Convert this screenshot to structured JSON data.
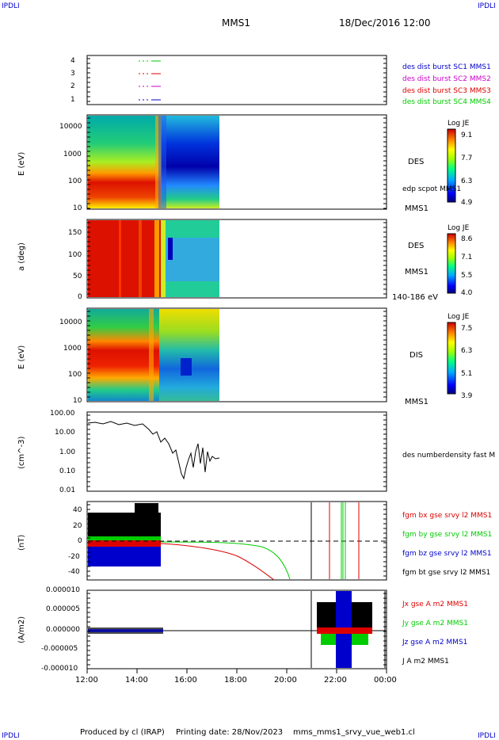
{
  "header": {
    "corner_tl": "IPDLI",
    "corner_tr": "IPDLI",
    "corner_bl": "IPDLI",
    "corner_br": "IPDLI",
    "spacecraft": "MMS1",
    "date": "18/Dec/2016 12:00"
  },
  "footer": {
    "produced": "Produced by cl (IRAP)",
    "printing": "Printing date: 28/Nov/2023",
    "file": "mms_mms1_srvy_vue_web1.cl"
  },
  "colors": {
    "mms1": "#0000cc",
    "mms2": "#cc00cc",
    "mms3": "#dd0000",
    "mms4": "#00cc00",
    "black": "#000000"
  },
  "chart_data": [
    {
      "type": "line",
      "panel": "availability",
      "ytick_labels": [
        "4",
        "3",
        "2",
        "1"
      ],
      "legend": [
        {
          "name": "des dist burst SC1 MMS1",
          "color": "#0000cc"
        },
        {
          "name": "des dist burst SC2 MMS2",
          "color": "#cc00cc"
        },
        {
          "name": "des dist burst SC3 MMS3",
          "color": "#dd0000"
        },
        {
          "name": "des dist burst SC4 MMS4",
          "color": "#00cc00"
        }
      ]
    },
    {
      "type": "heatmap",
      "panel": "des-energy",
      "ylabel": "E (eV)",
      "ytick_labels": [
        "10000",
        "1000",
        "100",
        "10"
      ],
      "label_right": "DES",
      "label_under": "MMS1",
      "overlay_label": "edp scpot MMS1",
      "colorbar": {
        "title": "Log JE",
        "ticks": [
          "9.1",
          "7.7",
          "6.3",
          "4.9"
        ]
      }
    },
    {
      "type": "heatmap",
      "panel": "des-pitch",
      "ylabel": "a (deg)",
      "ytick_labels": [
        "150",
        "100",
        "50",
        "0"
      ],
      "label_right": "DES",
      "label_right2": "MMS1",
      "label_under": "140-186 eV",
      "colorbar": {
        "title": "Log JE",
        "ticks": [
          "8.6",
          "7.1",
          "5.5",
          "4.0"
        ]
      }
    },
    {
      "type": "heatmap",
      "panel": "dis-energy",
      "ylabel": "E (eV)",
      "ytick_labels": [
        "10000",
        "1000",
        "100",
        "10"
      ],
      "label_right": "DIS",
      "label_under": "MMS1",
      "colorbar": {
        "title": "Log JE",
        "ticks": [
          "7.5",
          "6.3",
          "5.1",
          "3.9"
        ]
      }
    },
    {
      "type": "line",
      "panel": "density",
      "ylabel": "(cm^-3)",
      "ytick_labels": [
        "100.00",
        "10.00",
        "1.00",
        "0.10",
        "0.01"
      ],
      "legend": [
        {
          "name": "des numberdensity fast M",
          "color": "#000000"
        }
      ],
      "yscale": "log",
      "ylim": [
        0.01,
        100
      ]
    },
    {
      "type": "line",
      "panel": "magnetic-field",
      "ylabel": "(nT)",
      "ytick_labels": [
        "40",
        "20",
        "0",
        "-20",
        "-40"
      ],
      "ylim": [
        -50,
        50
      ],
      "legend": [
        {
          "name": "fgm bx gse srvy l2 MMS1",
          "color": "#dd0000"
        },
        {
          "name": "fgm by gse srvy l2 MMS1",
          "color": "#00cc00"
        },
        {
          "name": "fgm bz gse srvy l2 MMS1",
          "color": "#0000cc"
        },
        {
          "name": "fgm bt gse srvy l2 MMS1",
          "color": "#000000"
        }
      ]
    },
    {
      "type": "line",
      "panel": "current-density",
      "ylabel": "(A/m2)",
      "ytick_labels": [
        "0.000010",
        "0.000005",
        "0.000000",
        "-0.000005",
        "-0.000010"
      ],
      "ylim": [
        -1e-05,
        1e-05
      ],
      "legend": [
        {
          "name": "Jx gse A m2 MMS1",
          "color": "#dd0000"
        },
        {
          "name": "Jy gse A m2 MMS1",
          "color": "#00cc00"
        },
        {
          "name": "Jz gse A m2 MMS1",
          "color": "#0000cc"
        },
        {
          "name": "J A m2 MMS1",
          "color": "#000000"
        }
      ]
    }
  ],
  "xaxis": {
    "tick_labels": [
      "12:00",
      "14:00",
      "16:00",
      "18:00",
      "20:00",
      "22:00",
      "00:00"
    ]
  }
}
